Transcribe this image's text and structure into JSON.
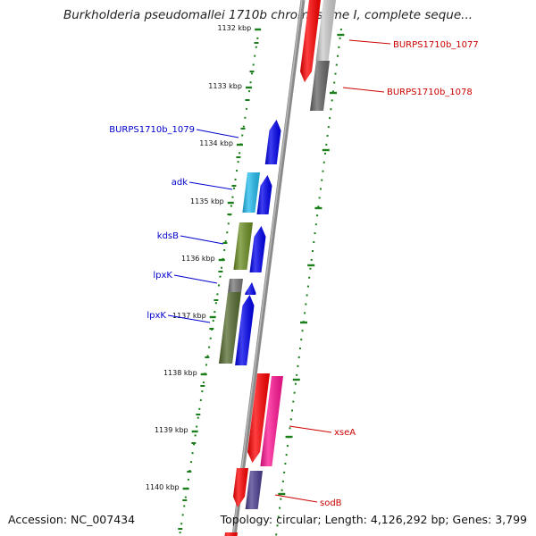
{
  "title": "Burkholderia pseudomallei 1710b chromosome I, complete seque...",
  "accession": "Accession: NC_007434",
  "summary": "Topology: circular; Length: 4,126,292 bp; Genes: 3,799",
  "ruler": {
    "unit": "kbp",
    "tick_labels": [
      "1132 kbp",
      "1133 kbp",
      "1134 kbp",
      "1135 kbp",
      "1136 kbp",
      "1137 kbp",
      "1138 kbp",
      "1139 kbp",
      "1140 kbp"
    ],
    "tick_color": "#1a7f1a"
  },
  "colors": {
    "backbone": "#8a8a8a",
    "reverse_label": "#0000cc",
    "forward_label": "#cc0000"
  },
  "genes": [
    {
      "label": "BURPS1710b_1077",
      "strand": "forward",
      "color": "#cccccc"
    },
    {
      "label": "BURPS1710b_1078",
      "strand": "forward",
      "color": "#666666"
    },
    {
      "label": "",
      "strand": "forward",
      "color": "#ff0000"
    },
    {
      "label": "BURPS1710b_1079",
      "strand": "reverse",
      "color": "#0000ee"
    },
    {
      "label": "adk",
      "strand": "reverse",
      "color": "#22bbee"
    },
    {
      "label": "kdsB",
      "strand": "reverse",
      "color": "#6b8e23"
    },
    {
      "label": "lpxK",
      "strand": "reverse",
      "color": "#777777"
    },
    {
      "label": "lpxK",
      "strand": "reverse",
      "color": "#556b2f"
    },
    {
      "label": "xseA",
      "strand": "forward",
      "color": "#ff1493"
    },
    {
      "label": "sodB",
      "strand": "forward",
      "color": "#4b3d8f"
    }
  ]
}
